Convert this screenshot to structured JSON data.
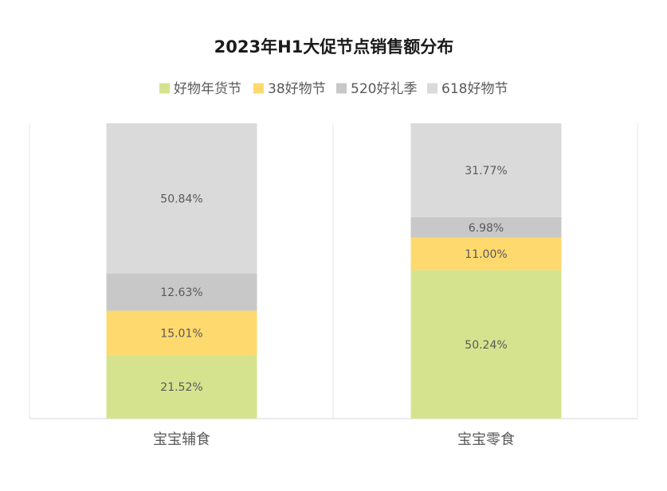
{
  "chart_data": {
    "type": "bar",
    "stacked": true,
    "title": "2023年H1大促节点销售额分布",
    "categories": [
      "宝宝辅食",
      "宝宝零食"
    ],
    "series": [
      {
        "name": "好物年货节",
        "color": "#d5e38f",
        "values": [
          21.52,
          50.24
        ],
        "labels": [
          "21.52%",
          "50.24%"
        ]
      },
      {
        "name": "38好物节",
        "color": "#fdd96e",
        "values": [
          15.01,
          11.0
        ],
        "labels": [
          "15.01%",
          "11.00%"
        ]
      },
      {
        "name": "520好礼季",
        "color": "#c8c8c8",
        "values": [
          12.63,
          6.98
        ],
        "labels": [
          "12.63%",
          "6.98%"
        ]
      },
      {
        "name": "618好物节",
        "color": "#dadada",
        "values": [
          50.84,
          31.77
        ],
        "labels": [
          "50.84%",
          "31.77%"
        ]
      }
    ],
    "legend_position": "top",
    "grid": false
  }
}
